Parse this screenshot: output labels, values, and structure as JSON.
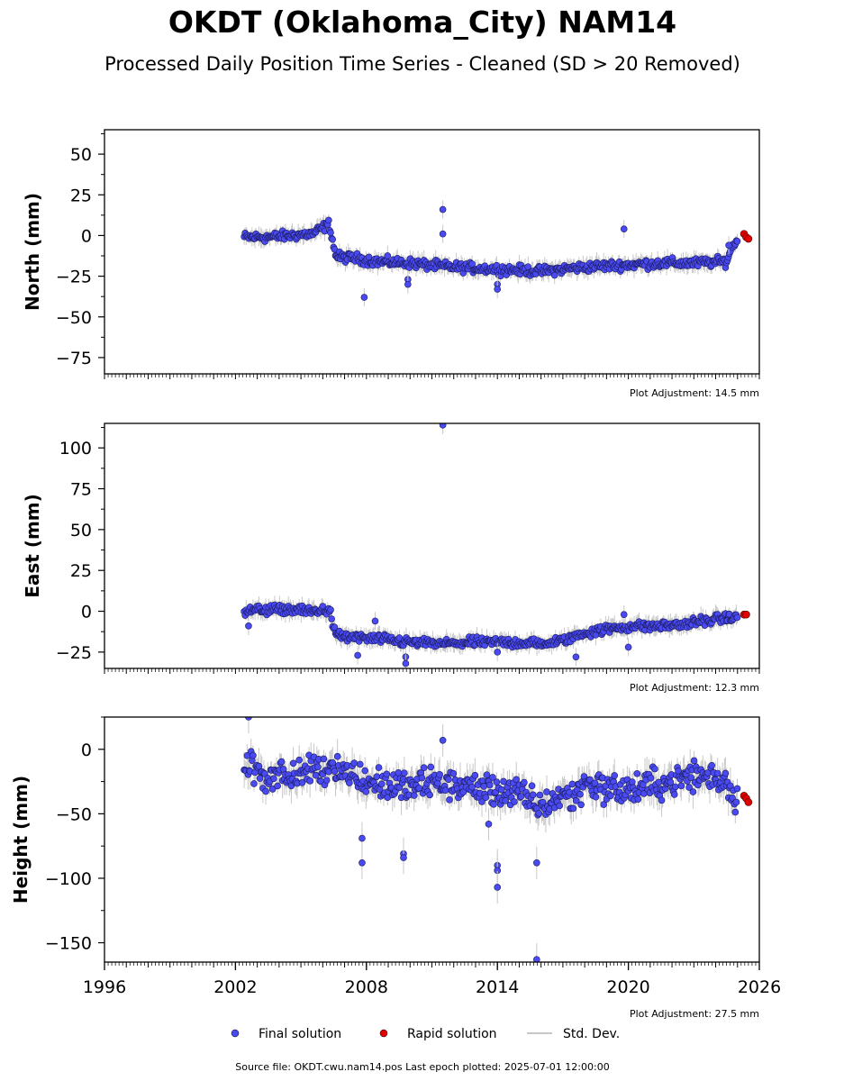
{
  "title": "OKDT (Oklahoma_City) NAM14",
  "subtitle": "Processed Daily Position Time Series - Cleaned (SD > 20 Removed)",
  "legend": {
    "final": "Final solution",
    "rapid": "Rapid solution",
    "std": "Std. Dev."
  },
  "source": "Source file: OKDT.cwu.nam14.pos  Last epoch plotted: 2025-07-01 12:00:00",
  "colors": {
    "final": "#4a4af2",
    "rapid": "#e00000",
    "std": "#c8c8c8"
  },
  "chart_data": [
    {
      "type": "scatter",
      "ylabel": "North (mm)",
      "adjustment": "Plot Adjustment: 14.5 mm",
      "xlim": [
        1996,
        2026
      ],
      "ylim": [
        -85,
        65
      ],
      "yticks": [
        50,
        25,
        0,
        -25,
        -50,
        -75
      ],
      "ytick_labels": [
        "50",
        "25",
        "0",
        "−25",
        "−50",
        "−75"
      ],
      "x_tick_labels_shown": false,
      "final_series": {
        "x": [
          2002.4,
          2003.5,
          2004.5,
          2005.5,
          2006.3,
          2006.6,
          2007.5,
          2008.5,
          2010.0,
          2011.5,
          2013.0,
          2014.5,
          2016.0,
          2017.5,
          2018.5,
          2020.0,
          2021.5,
          2023.0,
          2024.5,
          2024.8,
          2025.0
        ],
        "y": [
          -1,
          -1,
          0,
          1,
          7,
          -13,
          -14,
          -16,
          -17,
          -19,
          -20,
          -21,
          -22,
          -20,
          -19,
          -18,
          -17,
          -17,
          -16,
          -5,
          -4
        ]
      },
      "outliers": {
        "x": [
          2007.9,
          2009.9,
          2009.9,
          2011.5,
          2011.5,
          2014.0,
          2014.0,
          2019.8,
          2024.6
        ],
        "y": [
          -38,
          -27,
          -30,
          16,
          1,
          -30,
          -33,
          4,
          -6
        ]
      },
      "rapid_series": {
        "x": [
          2025.3,
          2025.4,
          2025.5
        ],
        "y": [
          1,
          -1,
          -2
        ]
      }
    },
    {
      "type": "scatter",
      "ylabel": "East (mm)",
      "adjustment": "Plot Adjustment: 12.3 mm",
      "xlim": [
        1996,
        2026
      ],
      "ylim": [
        -35,
        115
      ],
      "yticks": [
        100,
        75,
        50,
        25,
        0,
        -25
      ],
      "ytick_labels": [
        "100",
        "75",
        "50",
        "25",
        "0",
        "−25"
      ],
      "x_tick_labels_shown": false,
      "final_series": {
        "x": [
          2002.4,
          2003.5,
          2004.5,
          2005.5,
          2006.3,
          2006.6,
          2007.5,
          2008.5,
          2010.0,
          2011.5,
          2013.0,
          2014.5,
          2016.0,
          2017.0,
          2017.8,
          2018.5,
          2019.5,
          2020.5,
          2021.5,
          2022.5,
          2023.5,
          2024.5,
          2025.0
        ],
        "y": [
          0,
          1,
          1,
          0,
          1,
          -15,
          -16,
          -17,
          -19,
          -20,
          -19,
          -19,
          -20,
          -18,
          -14,
          -12,
          -10,
          -9,
          -9,
          -8,
          -6,
          -4,
          -4
        ]
      },
      "outliers": {
        "x": [
          2002.6,
          2007.6,
          2008.4,
          2009.8,
          2009.8,
          2011.5,
          2014.0,
          2017.6,
          2019.8,
          2020.0
        ],
        "y": [
          -9,
          -27,
          -6,
          -28,
          -32,
          114,
          -25,
          -28,
          -2,
          -22
        ]
      },
      "rapid_series": {
        "x": [
          2025.3,
          2025.4
        ],
        "y": [
          -2,
          -2
        ]
      }
    },
    {
      "type": "scatter",
      "ylabel": "Height (mm)",
      "adjustment": "Plot Adjustment: 27.5 mm",
      "xlim": [
        1996,
        2026
      ],
      "ylim": [
        -165,
        25
      ],
      "yticks": [
        0,
        -50,
        -100,
        -150
      ],
      "ytick_labels": [
        "0",
        "−50",
        "−100",
        "−150"
      ],
      "x_ticks": [
        1996,
        2002,
        2008,
        2014,
        2020,
        2026
      ],
      "x_tick_labels_shown": true,
      "final_series": {
        "x": [
          2002.4,
          2003.0,
          2003.5,
          2004.0,
          2004.5,
          2005.0,
          2005.5,
          2006.0,
          2006.5,
          2007.0,
          2007.5,
          2008.0,
          2009.0,
          2010.0,
          2011.0,
          2012.0,
          2013.0,
          2014.0,
          2015.0,
          2015.5,
          2016.0,
          2016.5,
          2017.0,
          2017.5,
          2018.0,
          2019.0,
          2020.0,
          2021.0,
          2022.0,
          2023.0,
          2024.0,
          2024.5,
          2025.0
        ],
        "y": [
          -10,
          -18,
          -22,
          -15,
          -25,
          -20,
          -12,
          -18,
          -10,
          -18,
          -20,
          -25,
          -28,
          -30,
          -25,
          -28,
          -30,
          -32,
          -35,
          -40,
          -45,
          -40,
          -35,
          -38,
          -25,
          -30,
          -32,
          -28,
          -25,
          -20,
          -22,
          -25,
          -40
        ]
      },
      "outliers": {
        "x": [
          2002.6,
          2007.8,
          2007.8,
          2009.7,
          2009.7,
          2011.5,
          2013.6,
          2014.0,
          2014.0,
          2014.0,
          2015.8,
          2015.8
        ],
        "y": [
          25,
          -69,
          -88,
          -81,
          -84,
          7,
          -58,
          -90,
          -94,
          -107,
          -88,
          -163
        ]
      },
      "rapid_series": {
        "x": [
          2025.3,
          2025.4,
          2025.5
        ],
        "y": [
          -36,
          -38,
          -41
        ]
      }
    }
  ]
}
